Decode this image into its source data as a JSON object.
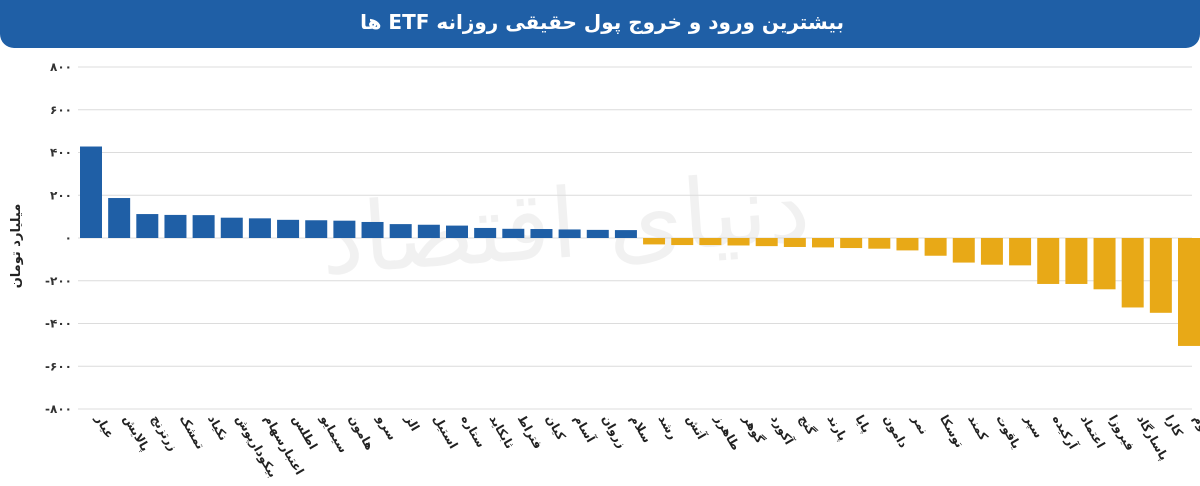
{
  "header": {
    "title": "بیشترین ورود و خروج پول حقیقی روزانه ETF ها"
  },
  "watermark": "دنیای اقتصاد",
  "chart_data": {
    "type": "bar",
    "title": "بیشترین ورود و خروج پول حقیقی روزانه ETF ها",
    "ylabel": "میلیارد تومان",
    "xlabel": "",
    "ylim": [
      -800,
      800
    ],
    "yticks": [
      800,
      600,
      400,
      200,
      0,
      -200,
      -400,
      -600,
      -800
    ],
    "ytick_labels": [
      "۸۰۰",
      "۶۰۰",
      "۴۰۰",
      "۲۰۰",
      "۰",
      "-۲۰۰",
      "-۴۰۰",
      "-۶۰۰",
      "-۸۰۰"
    ],
    "grid": true,
    "colors": {
      "positive": "#1f5fa6",
      "negative": "#e8a917",
      "grid": "#dcdcdc"
    },
    "categories": [
      "عیار",
      "پالایش",
      "زرتزنج",
      "تمشک",
      "نکیاد",
      "بیکودارپوش",
      "اعتبارسهام",
      "اطلس",
      "سیمایو",
      "هامون",
      "سرو",
      "الز",
      "استیل",
      "ستاره",
      "ثابکاید",
      "فتراط",
      "کیان",
      "آسام",
      "زروان",
      "سلام",
      "رشد",
      "آتش",
      "طاهرز",
      "گوهر",
      "آکورد",
      "گنج",
      "پارند",
      "پایا",
      "دامون",
      "نمر",
      "توسکا",
      "کمند",
      "یاقوت",
      "سپر",
      "آرکیده",
      "اعتماد",
      "فیروزا",
      "پاسارگاد",
      "کارا",
      "تداوم"
    ],
    "values": [
      428,
      187,
      112,
      108,
      107,
      95,
      92,
      85,
      83,
      81,
      75,
      65,
      62,
      58,
      47,
      43,
      42,
      40,
      38,
      37,
      -30,
      -33,
      -33,
      -35,
      -38,
      -42,
      -44,
      -47,
      -50,
      -58,
      -83,
      -115,
      -125,
      -128,
      -215,
      -215,
      -240,
      -325,
      -350,
      -505
    ]
  }
}
